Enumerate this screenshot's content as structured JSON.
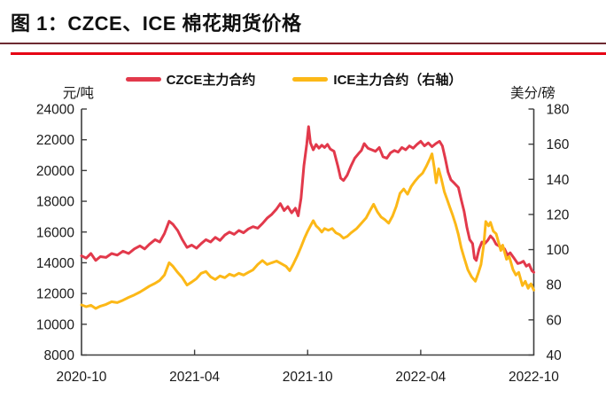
{
  "header": {
    "title": "图 1：CZCE、ICE 棉花期货价格"
  },
  "decor": {
    "thin_rule_color": "#6d2a31",
    "red_rule_color": "#e60014"
  },
  "legend": {
    "items": [
      {
        "label": "CZCE主力合约",
        "color": "#e2394b"
      },
      {
        "label": "ICE主力合约（右轴）",
        "color": "#fcb817"
      }
    ]
  },
  "chart_data": {
    "type": "line",
    "title": "图 1：CZCE、ICE 棉花期货价格",
    "grid": false,
    "legend_position": "top-center",
    "x_axis": {
      "tick_labels": [
        "2020-10",
        "2021-04",
        "2021-10",
        "2022-04",
        "2022-10"
      ],
      "tick_months": [
        0,
        6,
        12,
        18,
        24
      ],
      "range_months": [
        0,
        24
      ]
    },
    "left_axis": {
      "unit": "元/吨",
      "min": 8000,
      "max": 24000,
      "tick_step": 2000,
      "ticks": [
        "24000",
        "22000",
        "20000",
        "18000",
        "16000",
        "14000",
        "12000",
        "10000",
        "8000"
      ]
    },
    "right_axis": {
      "unit": "美分/磅",
      "min": 40,
      "max": 180,
      "tick_step": 20,
      "ticks": [
        "180",
        "160",
        "140",
        "120",
        "100",
        "80",
        "60",
        "40"
      ]
    },
    "series": [
      {
        "name": "CZCE主力合约",
        "axis": "left",
        "unit": "元/吨",
        "color": "#e2394b",
        "x_unit": "months_since_2020-10",
        "points": [
          [
            0.0,
            14450
          ],
          [
            0.25,
            14300
          ],
          [
            0.5,
            14600
          ],
          [
            0.75,
            14150
          ],
          [
            1.0,
            14400
          ],
          [
            1.3,
            14350
          ],
          [
            1.6,
            14600
          ],
          [
            1.9,
            14500
          ],
          [
            2.2,
            14750
          ],
          [
            2.5,
            14600
          ],
          [
            2.8,
            14900
          ],
          [
            3.1,
            15100
          ],
          [
            3.35,
            14900
          ],
          [
            3.6,
            15200
          ],
          [
            3.9,
            15500
          ],
          [
            4.15,
            15350
          ],
          [
            4.4,
            15900
          ],
          [
            4.65,
            16700
          ],
          [
            4.85,
            16500
          ],
          [
            5.1,
            16100
          ],
          [
            5.35,
            15500
          ],
          [
            5.6,
            15000
          ],
          [
            5.85,
            15150
          ],
          [
            6.1,
            14950
          ],
          [
            6.35,
            15250
          ],
          [
            6.6,
            15500
          ],
          [
            6.85,
            15350
          ],
          [
            7.1,
            15650
          ],
          [
            7.35,
            15450
          ],
          [
            7.6,
            15800
          ],
          [
            7.85,
            16000
          ],
          [
            8.1,
            15850
          ],
          [
            8.35,
            16100
          ],
          [
            8.6,
            15950
          ],
          [
            8.85,
            16200
          ],
          [
            9.1,
            16350
          ],
          [
            9.35,
            16250
          ],
          [
            9.6,
            16550
          ],
          [
            9.85,
            16900
          ],
          [
            10.1,
            17150
          ],
          [
            10.35,
            17500
          ],
          [
            10.55,
            17850
          ],
          [
            10.75,
            17400
          ],
          [
            10.95,
            17650
          ],
          [
            11.15,
            17250
          ],
          [
            11.35,
            17550
          ],
          [
            11.5,
            17050
          ],
          [
            11.65,
            18200
          ],
          [
            11.8,
            20300
          ],
          [
            11.95,
            21700
          ],
          [
            12.05,
            22850
          ],
          [
            12.15,
            21800
          ],
          [
            12.3,
            21350
          ],
          [
            12.45,
            21700
          ],
          [
            12.6,
            21450
          ],
          [
            12.75,
            21650
          ],
          [
            12.9,
            21500
          ],
          [
            13.05,
            21700
          ],
          [
            13.2,
            21400
          ],
          [
            13.4,
            21250
          ],
          [
            13.6,
            20300
          ],
          [
            13.75,
            19500
          ],
          [
            13.9,
            19350
          ],
          [
            14.1,
            19700
          ],
          [
            14.3,
            20300
          ],
          [
            14.5,
            20800
          ],
          [
            14.7,
            21100
          ],
          [
            14.85,
            21300
          ],
          [
            15.0,
            21750
          ],
          [
            15.2,
            21450
          ],
          [
            15.4,
            21350
          ],
          [
            15.6,
            21250
          ],
          [
            15.8,
            21500
          ],
          [
            16.0,
            20900
          ],
          [
            16.2,
            20800
          ],
          [
            16.4,
            21150
          ],
          [
            16.6,
            21300
          ],
          [
            16.8,
            21200
          ],
          [
            17.0,
            21500
          ],
          [
            17.2,
            21350
          ],
          [
            17.4,
            21600
          ],
          [
            17.6,
            21450
          ],
          [
            17.8,
            21700
          ],
          [
            18.0,
            21900
          ],
          [
            18.2,
            21600
          ],
          [
            18.4,
            21800
          ],
          [
            18.6,
            21550
          ],
          [
            18.8,
            21750
          ],
          [
            19.0,
            21900
          ],
          [
            19.15,
            21600
          ],
          [
            19.3,
            20800
          ],
          [
            19.45,
            19900
          ],
          [
            19.6,
            19400
          ],
          [
            19.8,
            19150
          ],
          [
            20.0,
            18900
          ],
          [
            20.15,
            18100
          ],
          [
            20.3,
            17350
          ],
          [
            20.45,
            16300
          ],
          [
            20.6,
            15500
          ],
          [
            20.75,
            15250
          ],
          [
            20.85,
            14300
          ],
          [
            20.95,
            14150
          ],
          [
            21.1,
            14900
          ],
          [
            21.25,
            15350
          ],
          [
            21.4,
            15250
          ],
          [
            21.55,
            15450
          ],
          [
            21.7,
            15750
          ],
          [
            21.85,
            15550
          ],
          [
            22.0,
            15200
          ],
          [
            22.15,
            15100
          ],
          [
            22.3,
            15050
          ],
          [
            22.45,
            14900
          ],
          [
            22.6,
            14500
          ],
          [
            22.75,
            14650
          ],
          [
            22.95,
            14300
          ],
          [
            23.15,
            13950
          ],
          [
            23.3,
            14000
          ],
          [
            23.45,
            14100
          ],
          [
            23.6,
            13780
          ],
          [
            23.75,
            13900
          ],
          [
            23.9,
            13480
          ],
          [
            24.0,
            13380
          ]
        ]
      },
      {
        "name": "ICE主力合约（右轴）",
        "axis": "right",
        "unit": "美分/磅",
        "color": "#fcb817",
        "x_unit": "months_since_2020-10",
        "points": [
          [
            0.0,
            68.5
          ],
          [
            0.25,
            67.5
          ],
          [
            0.5,
            68.3
          ],
          [
            0.75,
            66.5
          ],
          [
            1.0,
            67.8
          ],
          [
            1.3,
            68.8
          ],
          [
            1.6,
            70.3
          ],
          [
            1.9,
            69.8
          ],
          [
            2.2,
            71.2
          ],
          [
            2.5,
            72.8
          ],
          [
            2.8,
            74.2
          ],
          [
            3.1,
            75.8
          ],
          [
            3.35,
            77.5
          ],
          [
            3.6,
            79.2
          ],
          [
            3.9,
            80.8
          ],
          [
            4.15,
            82.5
          ],
          [
            4.4,
            85.5
          ],
          [
            4.65,
            92.5
          ],
          [
            4.85,
            90.5
          ],
          [
            5.1,
            87.0
          ],
          [
            5.35,
            84.0
          ],
          [
            5.6,
            79.8
          ],
          [
            5.85,
            81.5
          ],
          [
            6.1,
            83.5
          ],
          [
            6.35,
            86.5
          ],
          [
            6.6,
            87.5
          ],
          [
            6.85,
            84.5
          ],
          [
            7.1,
            83.0
          ],
          [
            7.35,
            85.0
          ],
          [
            7.6,
            84.0
          ],
          [
            7.85,
            86.0
          ],
          [
            8.1,
            85.0
          ],
          [
            8.35,
            86.5
          ],
          [
            8.6,
            85.5
          ],
          [
            8.85,
            87.0
          ],
          [
            9.1,
            88.5
          ],
          [
            9.35,
            91.5
          ],
          [
            9.6,
            93.8
          ],
          [
            9.85,
            91.5
          ],
          [
            10.1,
            92.5
          ],
          [
            10.35,
            93.5
          ],
          [
            10.6,
            92.0
          ],
          [
            10.85,
            90.5
          ],
          [
            11.05,
            88.0
          ],
          [
            11.25,
            92.0
          ],
          [
            11.45,
            96.5
          ],
          [
            11.65,
            101.5
          ],
          [
            11.85,
            107.0
          ],
          [
            12.0,
            110.5
          ],
          [
            12.15,
            113.5
          ],
          [
            12.3,
            116.5
          ],
          [
            12.45,
            113.5
          ],
          [
            12.6,
            112.0
          ],
          [
            12.75,
            110.0
          ],
          [
            12.9,
            112.0
          ],
          [
            13.1,
            111.0
          ],
          [
            13.3,
            112.0
          ],
          [
            13.5,
            109.5
          ],
          [
            13.7,
            108.5
          ],
          [
            13.9,
            106.5
          ],
          [
            14.1,
            107.5
          ],
          [
            14.3,
            109.5
          ],
          [
            14.6,
            112.0
          ],
          [
            14.9,
            115.5
          ],
          [
            15.1,
            118.0
          ],
          [
            15.3,
            122.0
          ],
          [
            15.5,
            125.8
          ],
          [
            15.7,
            121.5
          ],
          [
            15.9,
            118.5
          ],
          [
            16.1,
            117.0
          ],
          [
            16.3,
            115.0
          ],
          [
            16.5,
            119.0
          ],
          [
            16.7,
            124.5
          ],
          [
            16.9,
            132.0
          ],
          [
            17.1,
            134.5
          ],
          [
            17.3,
            131.5
          ],
          [
            17.5,
            136.0
          ],
          [
            17.7,
            139.0
          ],
          [
            17.9,
            141.5
          ],
          [
            18.1,
            143.5
          ],
          [
            18.3,
            147.5
          ],
          [
            18.5,
            152.0
          ],
          [
            18.6,
            154.5
          ],
          [
            18.72,
            146.5
          ],
          [
            18.82,
            138.0
          ],
          [
            18.95,
            146.0
          ],
          [
            19.1,
            140.0
          ],
          [
            19.25,
            133.0
          ],
          [
            19.4,
            128.5
          ],
          [
            19.55,
            124.0
          ],
          [
            19.7,
            119.5
          ],
          [
            19.85,
            114.5
          ],
          [
            20.0,
            108.5
          ],
          [
            20.15,
            101.0
          ],
          [
            20.3,
            95.5
          ],
          [
            20.5,
            88.5
          ],
          [
            20.7,
            84.5
          ],
          [
            20.9,
            82.0
          ],
          [
            21.05,
            86.5
          ],
          [
            21.2,
            91.5
          ],
          [
            21.35,
            103.0
          ],
          [
            21.45,
            116.0
          ],
          [
            21.6,
            113.5
          ],
          [
            21.7,
            115.5
          ],
          [
            21.85,
            110.5
          ],
          [
            22.0,
            109.0
          ],
          [
            22.15,
            103.5
          ],
          [
            22.25,
            99.5
          ],
          [
            22.35,
            102.5
          ],
          [
            22.55,
            94.5
          ],
          [
            22.7,
            96.0
          ],
          [
            22.9,
            88.5
          ],
          [
            23.05,
            85.5
          ],
          [
            23.2,
            87.0
          ],
          [
            23.4,
            79.5
          ],
          [
            23.55,
            82.0
          ],
          [
            23.7,
            78.0
          ],
          [
            23.85,
            80.5
          ],
          [
            24.0,
            77.0
          ]
        ]
      }
    ]
  }
}
